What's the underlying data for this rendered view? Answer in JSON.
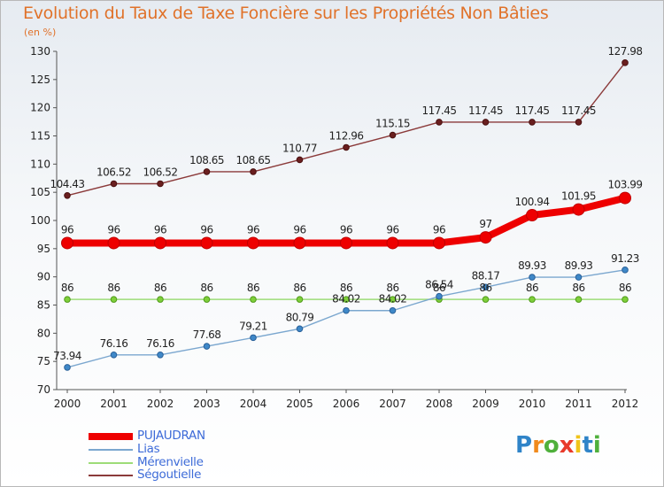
{
  "title": "Evolution du Taux de Taxe Foncière sur les Propriétés Non Bâties",
  "unit_label": "(en %)",
  "logo": {
    "letters": [
      "P",
      "r",
      "o",
      "x",
      "i",
      "t",
      "i"
    ],
    "colors": [
      "#2f84c8",
      "#f08a1c",
      "#4fb03b",
      "#e83a2a",
      "#f0c419",
      "#2f84c8",
      "#4fb03b"
    ]
  },
  "chart_data": {
    "type": "line",
    "x": [
      "2000",
      "2001",
      "2002",
      "2003",
      "2004",
      "2005",
      "2006",
      "2007",
      "2008",
      "2009",
      "2010",
      "2011",
      "2012"
    ],
    "ylim": [
      70,
      130
    ],
    "yticks": [
      70,
      75,
      80,
      85,
      90,
      95,
      100,
      105,
      110,
      115,
      120,
      125,
      130
    ],
    "grid": false,
    "legend": "bottom-left",
    "series": [
      {
        "name": "PUJAUDRAN",
        "color": "#ee0000",
        "values": [
          96,
          96,
          96,
          96,
          96,
          96,
          96,
          96,
          96,
          97,
          100.94,
          101.95,
          103.99
        ],
        "labels": [
          "96",
          "96",
          "96",
          "96",
          "96",
          "96",
          "96",
          "96",
          "96",
          "97",
          "100.94",
          "101.95",
          "103.99"
        ]
      },
      {
        "name": "Lias",
        "color": "#7ba7cf",
        "values": [
          73.94,
          76.16,
          76.16,
          77.68,
          79.21,
          80.79,
          84.02,
          84.02,
          86.54,
          88.17,
          89.93,
          89.93,
          91.23
        ],
        "labels": [
          "73.94",
          "76.16",
          "76.16",
          "77.68",
          "79.21",
          "80.79",
          "84.02",
          "84.02",
          "86.54",
          "88.17",
          "89.93",
          "89.93",
          "91.23"
        ]
      },
      {
        "name": "Mérenvielle",
        "color": "#9ddc78",
        "values": [
          86,
          86,
          86,
          86,
          86,
          86,
          86,
          86,
          86,
          86,
          86,
          86,
          86
        ],
        "labels": [
          "86",
          "86",
          "86",
          "86",
          "86",
          "86",
          "86",
          "86",
          "86",
          "86",
          "86",
          "86",
          "86"
        ]
      },
      {
        "name": "Ségoutielle",
        "color": "#8b3a3a",
        "values": [
          104.43,
          106.52,
          106.52,
          108.65,
          108.65,
          110.77,
          112.96,
          115.15,
          117.45,
          117.45,
          117.45,
          117.45,
          127.98
        ],
        "labels": [
          "104.43",
          "106.52",
          "106.52",
          "108.65",
          "108.65",
          "110.77",
          "112.96",
          "115.15",
          "117.45",
          "117.45",
          "117.45",
          "117.45",
          "127.98"
        ]
      }
    ]
  }
}
